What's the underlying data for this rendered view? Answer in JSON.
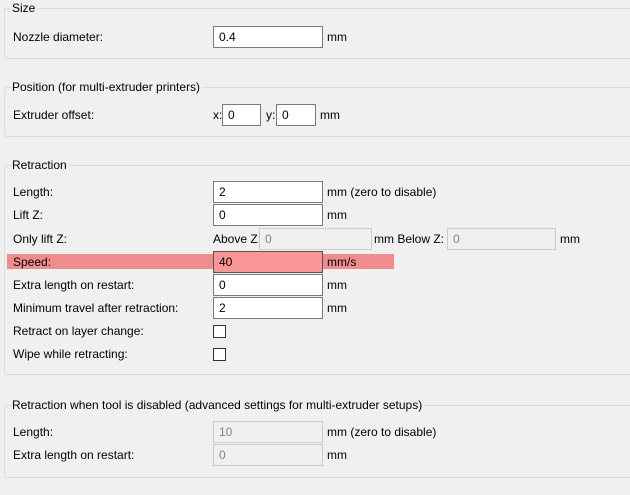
{
  "size": {
    "title": "Size",
    "nozzle_label": "Nozzle diameter:",
    "nozzle_value": "0.4",
    "unit": "mm"
  },
  "position": {
    "title": "Position (for multi-extruder printers)",
    "offset_label": "Extruder offset:",
    "x_label": "x:",
    "x_value": "0",
    "y_label": "y:",
    "y_value": "0",
    "unit": "mm"
  },
  "retraction": {
    "title": "Retraction",
    "length_label": "Length:",
    "length_value": "2",
    "length_unit": "mm (zero to disable)",
    "liftz_label": "Lift Z:",
    "liftz_value": "0",
    "liftz_unit": "mm",
    "only_lift_label": "Only lift Z:",
    "above_label": "Above Z:",
    "above_value": "0",
    "below_label": "mm Below Z:",
    "below_value": "0",
    "below_unit": "mm",
    "speed_label": "Speed:",
    "speed_value": "40",
    "speed_unit": "mm/s",
    "highlight_color": "#f08c8c",
    "extra_label": "Extra length on restart:",
    "extra_value": "0",
    "extra_unit": "mm",
    "min_travel_label": "Minimum travel after retraction:",
    "min_travel_value": "2",
    "min_travel_unit": "mm",
    "layer_change_label": "Retract on layer change:",
    "layer_change_checked": false,
    "wipe_label": "Wipe while retracting:",
    "wipe_checked": false
  },
  "disabled": {
    "title": "Retraction when tool is disabled (advanced settings for multi-extruder setups)",
    "length_label": "Length:",
    "length_value": "10",
    "length_unit": "mm (zero to disable)",
    "extra_label": "Extra length on restart:",
    "extra_value": "0",
    "extra_unit": "mm"
  }
}
